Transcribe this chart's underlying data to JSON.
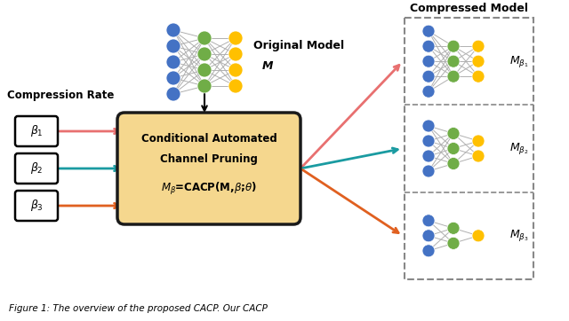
{
  "bg_color": "#ffffff",
  "title_text": "Figure 1: The overview of the proposed CACP. Our CACP",
  "box_color": "#F5D78E",
  "box_edge_color": "#1a1a1a",
  "box_text_line1": "Conditional Automated",
  "box_text_line2": "Channel Pruning",
  "box_text_line3": "$M_{\\beta}$=CACP(M,$\\beta$;$\\theta$)",
  "compression_rate_label": "Compression Rate",
  "original_model_label": "Original Model",
  "original_model_sub": "M",
  "compressed_model_label": "Compressed Model",
  "arrow_colors": [
    "#E87070",
    "#1A9BA1",
    "#E06020"
  ],
  "node_blue": "#4472C4",
  "node_green": "#70AD47",
  "node_orange": "#FFC000",
  "dashed_box_color": "#888888",
  "fig_width": 6.4,
  "fig_height": 3.62
}
